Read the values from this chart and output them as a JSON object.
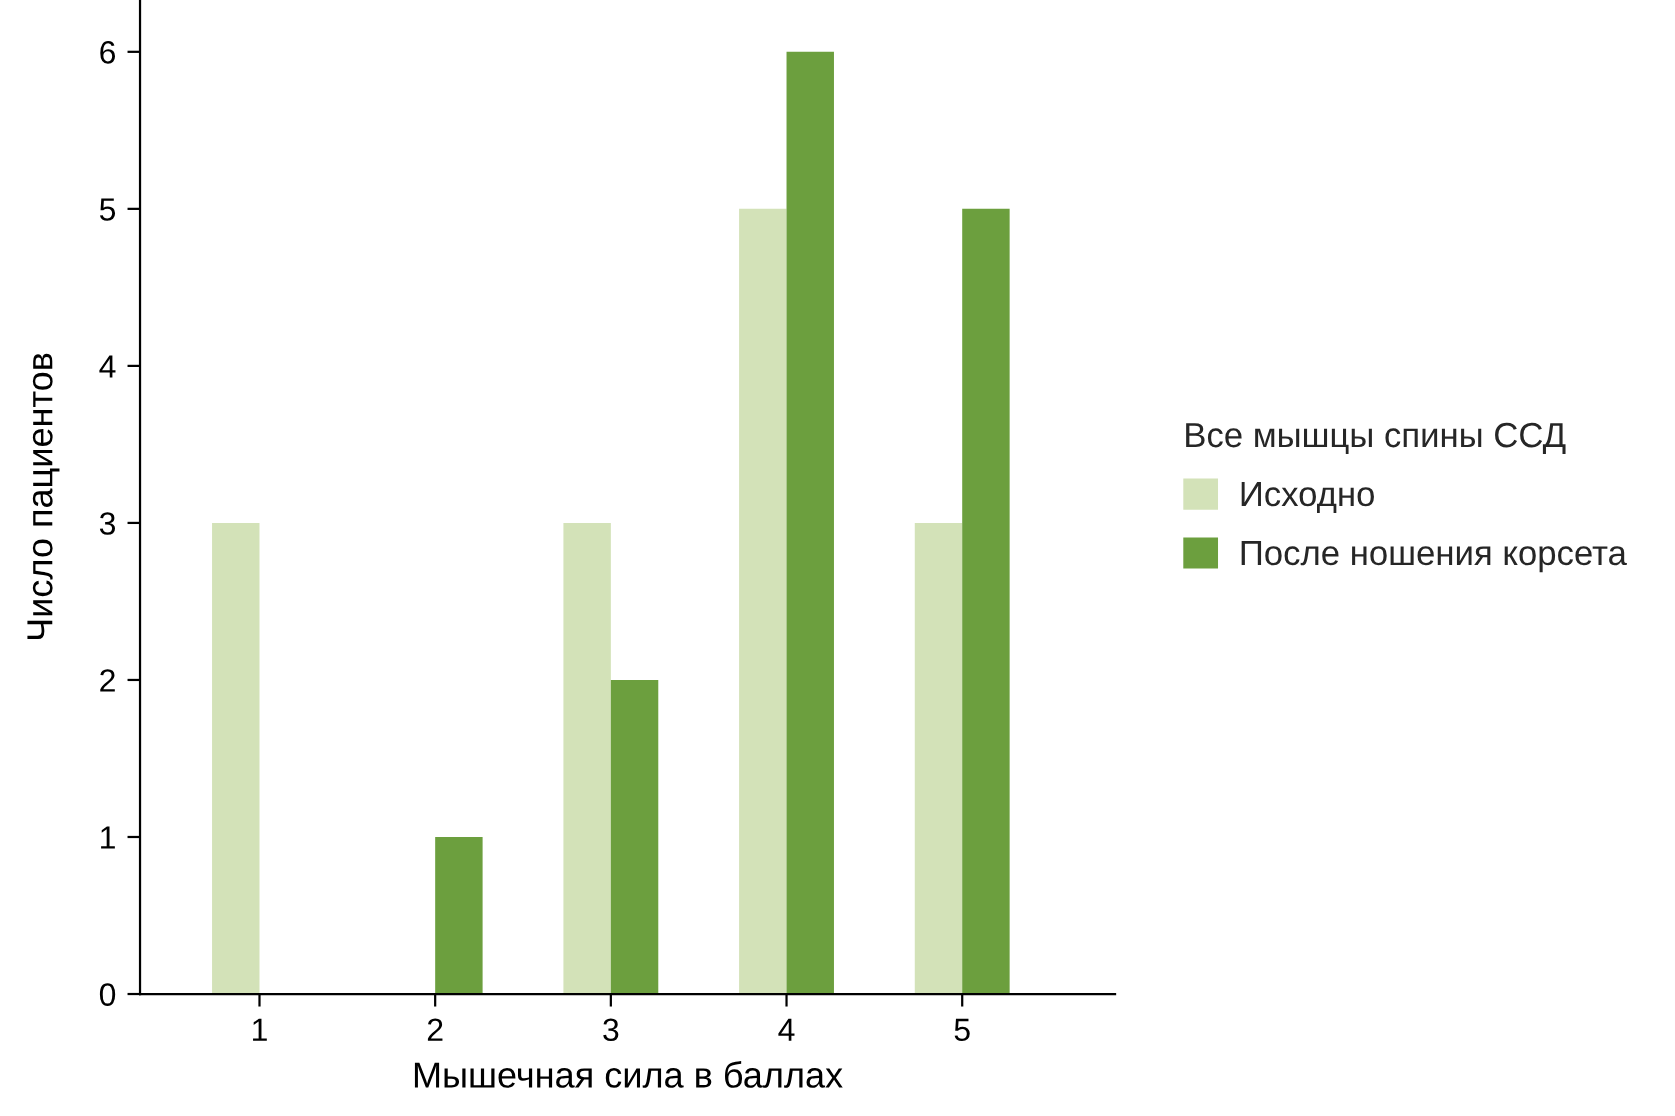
{
  "chart_data": {
    "type": "bar",
    "xlabel": "Мышечная сила в баллах",
    "ylabel": "Число пациентов",
    "legend_title": "Все мышцы спины ССД",
    "categories": [
      "1",
      "2",
      "3",
      "4",
      "5"
    ],
    "series": [
      {
        "name": "Исходно",
        "color": "#d3e2b8",
        "values": [
          3,
          0,
          3,
          5,
          3
        ]
      },
      {
        "name": "После ношения корсета",
        "color": "#6c9f3e",
        "values": [
          0,
          1,
          2,
          6,
          5
        ]
      }
    ],
    "ylim": [
      0,
      6.33
    ],
    "yticks": [
      0,
      1,
      2,
      3,
      4,
      5,
      6
    ],
    "legend": "right"
  }
}
